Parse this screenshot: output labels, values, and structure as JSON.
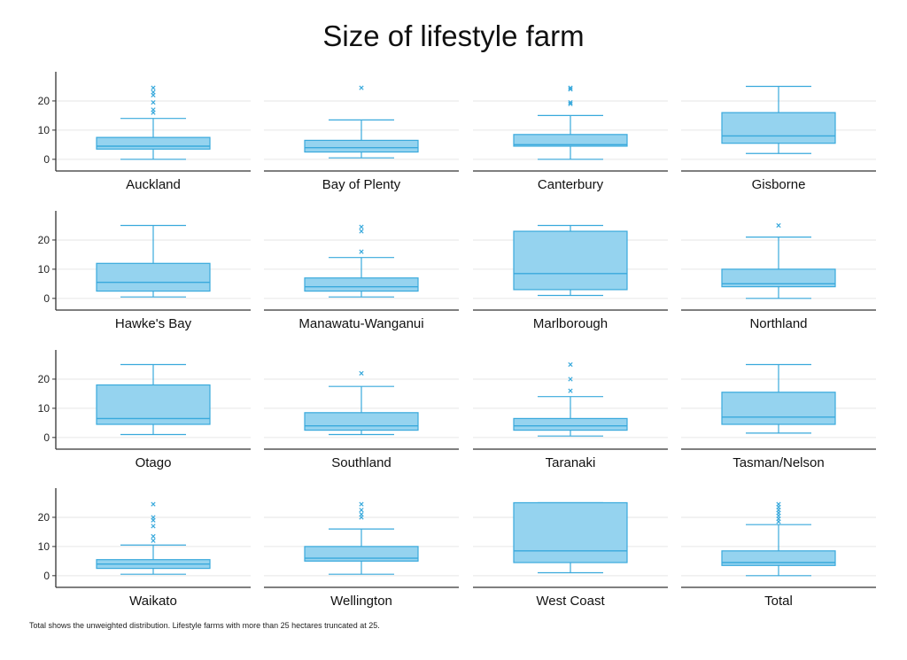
{
  "chart_data": {
    "type": "boxplot",
    "title": "Size of lifestyle farm",
    "note": "Total shows the unweighted distribution. Lifestyle farms with more than 25 hectares truncated at 25.",
    "ylim": [
      -4,
      30
    ],
    "yticks": [
      0,
      10,
      20
    ],
    "grid": true,
    "colors": {
      "box_fill": "#95d3ef",
      "box_stroke": "#39a9dc",
      "axis": "#333333",
      "grid": "#e6e6e6"
    },
    "panels": [
      {
        "name": "Auckland",
        "q1": 3.5,
        "median": 4.5,
        "q3": 7.5,
        "whisker_low": 0,
        "whisker_high": 14,
        "outliers": [
          16,
          17,
          19.5,
          22,
          23,
          24.5
        ]
      },
      {
        "name": "Bay of Plenty",
        "q1": 2.5,
        "median": 4,
        "q3": 6.5,
        "whisker_low": 0.5,
        "whisker_high": 13.5,
        "outliers": [
          24.5
        ]
      },
      {
        "name": "Canterbury",
        "q1": 4.5,
        "median": 5,
        "q3": 8.5,
        "whisker_low": 0,
        "whisker_high": 15,
        "outliers": [
          19,
          19.5,
          24,
          24.5
        ]
      },
      {
        "name": "Gisborne",
        "q1": 5.5,
        "median": 8,
        "q3": 16,
        "whisker_low": 2,
        "whisker_high": 25,
        "outliers": []
      },
      {
        "name": "Hawke's Bay",
        "q1": 2.5,
        "median": 5.5,
        "q3": 12,
        "whisker_low": 0.5,
        "whisker_high": 25,
        "outliers": []
      },
      {
        "name": "Manawatu-Wanganui",
        "q1": 2.5,
        "median": 4,
        "q3": 7,
        "whisker_low": 0.5,
        "whisker_high": 14,
        "outliers": [
          16,
          23,
          24.5
        ]
      },
      {
        "name": "Marlborough",
        "q1": 3,
        "median": 8.5,
        "q3": 23,
        "whisker_low": 1,
        "whisker_high": 25,
        "outliers": []
      },
      {
        "name": "Northland",
        "q1": 4,
        "median": 5,
        "q3": 10,
        "whisker_low": 0,
        "whisker_high": 21,
        "outliers": [
          25
        ]
      },
      {
        "name": "Otago",
        "q1": 4.5,
        "median": 6.5,
        "q3": 18,
        "whisker_low": 1,
        "whisker_high": 25,
        "outliers": []
      },
      {
        "name": "Southland",
        "q1": 2.5,
        "median": 4,
        "q3": 8.5,
        "whisker_low": 1,
        "whisker_high": 17.5,
        "outliers": [
          22
        ]
      },
      {
        "name": "Taranaki",
        "q1": 2.5,
        "median": 4,
        "q3": 6.5,
        "whisker_low": 0.5,
        "whisker_high": 14,
        "outliers": [
          16,
          20,
          25
        ]
      },
      {
        "name": "Tasman/Nelson",
        "q1": 4.5,
        "median": 7,
        "q3": 15.5,
        "whisker_low": 1.5,
        "whisker_high": 25,
        "outliers": []
      },
      {
        "name": "Waikato",
        "q1": 2.5,
        "median": 4,
        "q3": 5.5,
        "whisker_low": 0.5,
        "whisker_high": 10.5,
        "outliers": [
          12,
          13.5,
          17,
          19,
          20,
          24.5
        ]
      },
      {
        "name": "Wellington",
        "q1": 5,
        "median": 6,
        "q3": 10,
        "whisker_low": 0.5,
        "whisker_high": 16,
        "outliers": [
          20,
          21,
          22.5,
          24.5
        ]
      },
      {
        "name": "West Coast",
        "q1": 4.5,
        "median": 8.5,
        "q3": 25,
        "whisker_low": 1,
        "whisker_high": 25,
        "outliers": []
      },
      {
        "name": "Total",
        "q1": 3.5,
        "median": 4.5,
        "q3": 8.5,
        "whisker_low": 0,
        "whisker_high": 17.5,
        "outliers": [
          18.5,
          19.5,
          20.5,
          21.5,
          22.5,
          23.5,
          24.5
        ]
      }
    ]
  }
}
